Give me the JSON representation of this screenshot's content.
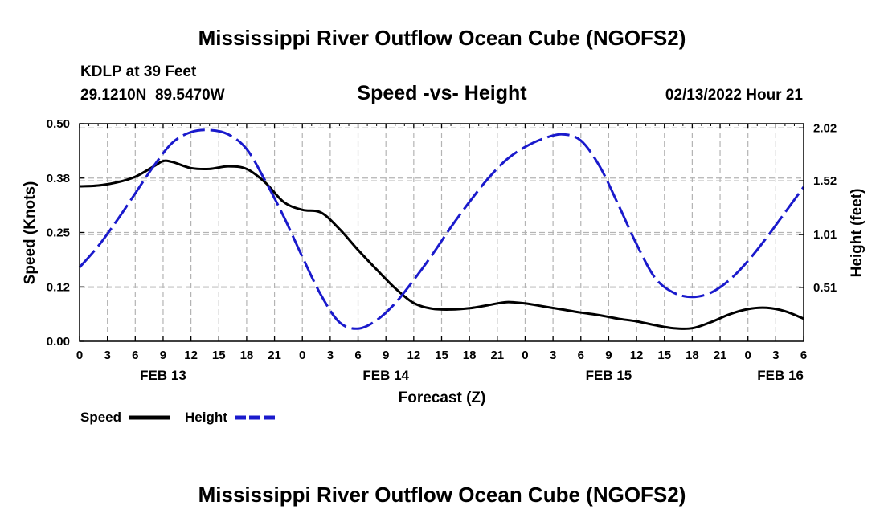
{
  "page": {
    "main_title": "Mississippi River Outflow Ocean Cube (NGOFS2)",
    "footer_title": "Mississippi River Outflow Ocean Cube (NGOFS2)"
  },
  "header": {
    "station": "KDLP at 39 Feet",
    "coords": "29.1210N  89.5470W",
    "plot_title": "Speed -vs- Height",
    "datetime": "02/13/2022 Hour 21"
  },
  "colors": {
    "speed": "#000000",
    "height": "#1a1acc",
    "grid": "#b4b4b4"
  },
  "chart_data": {
    "type": "line",
    "title": "Speed -vs- Height",
    "xlabel": "Forecast (Z)",
    "ylabel": "Speed (Knots)",
    "y2label": "Height (feet)",
    "x_unit": "hours from 02/13/2022 00Z",
    "xlim": [
      0,
      78
    ],
    "ylim": [
      0,
      0.5
    ],
    "y2lim": [
      0.0,
      2.06
    ],
    "x_tick_values": [
      0,
      3,
      6,
      9,
      12,
      15,
      18,
      21,
      24,
      27,
      30,
      33,
      36,
      39,
      42,
      45,
      48,
      51,
      54,
      57,
      60,
      63,
      66,
      69,
      72,
      75,
      78
    ],
    "x_tick_labels": [
      "0",
      "3",
      "6",
      "9",
      "12",
      "15",
      "18",
      "21",
      "0",
      "3",
      "6",
      "9",
      "12",
      "15",
      "18",
      "21",
      "0",
      "3",
      "6",
      "9",
      "12",
      "15",
      "18",
      "21",
      "0",
      "3",
      "6"
    ],
    "date_labels": [
      {
        "label": "FEB 13",
        "x": 9
      },
      {
        "label": "FEB 14",
        "x": 33
      },
      {
        "label": "FEB 15",
        "x": 57
      },
      {
        "label": "FEB 16",
        "x": 75.5
      }
    ],
    "y_ticks": [
      {
        "v": 0.0,
        "label": "0.00"
      },
      {
        "v": 0.125,
        "label": "0.12"
      },
      {
        "v": 0.25,
        "label": "0.25"
      },
      {
        "v": 0.375,
        "label": "0.38"
      },
      {
        "v": 0.5,
        "label": "0.50"
      }
    ],
    "y2_ticks": [
      {
        "v": 0.51,
        "label": "0.51"
      },
      {
        "v": 1.01,
        "label": "1.01"
      },
      {
        "v": 1.52,
        "label": "1.52"
      },
      {
        "v": 2.02,
        "label": "2.02"
      }
    ],
    "series": [
      {
        "name": "Speed",
        "axis": "left",
        "style": "solid",
        "x": [
          0,
          2,
          4,
          6,
          8,
          9,
          10,
          12,
          14,
          16,
          18,
          20,
          22,
          24,
          26,
          28,
          30,
          32,
          34,
          36,
          38,
          40,
          42,
          44,
          46,
          48,
          50,
          52,
          54,
          56,
          58,
          60,
          62,
          64,
          66,
          68,
          70,
          72,
          74,
          76,
          78
        ],
        "values": [
          0.356,
          0.358,
          0.365,
          0.378,
          0.402,
          0.414,
          0.412,
          0.398,
          0.396,
          0.402,
          0.396,
          0.365,
          0.32,
          0.302,
          0.296,
          0.258,
          0.21,
          0.165,
          0.122,
          0.088,
          0.075,
          0.073,
          0.076,
          0.083,
          0.09,
          0.087,
          0.08,
          0.073,
          0.066,
          0.06,
          0.052,
          0.046,
          0.037,
          0.03,
          0.03,
          0.044,
          0.062,
          0.074,
          0.077,
          0.069,
          0.052
        ]
      },
      {
        "name": "Height",
        "axis": "right",
        "style": "dashed",
        "x": [
          0,
          2,
          4,
          6,
          8,
          10,
          12,
          14,
          16,
          18,
          20,
          22,
          24,
          26,
          28,
          30,
          32,
          34,
          36,
          38,
          40,
          42,
          44,
          46,
          48,
          50,
          52,
          54,
          56,
          58,
          60,
          62,
          64,
          66,
          68,
          70,
          72,
          74,
          76,
          78
        ],
        "values": [
          0.7,
          0.9,
          1.14,
          1.4,
          1.66,
          1.88,
          1.98,
          2.0,
          1.96,
          1.82,
          1.52,
          1.18,
          0.8,
          0.44,
          0.18,
          0.12,
          0.2,
          0.36,
          0.58,
          0.82,
          1.08,
          1.32,
          1.54,
          1.72,
          1.84,
          1.92,
          1.96,
          1.9,
          1.66,
          1.3,
          0.92,
          0.6,
          0.46,
          0.42,
          0.46,
          0.58,
          0.76,
          0.98,
          1.22,
          1.46
        ]
      }
    ],
    "legend": [
      {
        "label": "Speed"
      },
      {
        "label": "Height"
      }
    ],
    "grid": true,
    "legend_position": "bottom-left"
  }
}
